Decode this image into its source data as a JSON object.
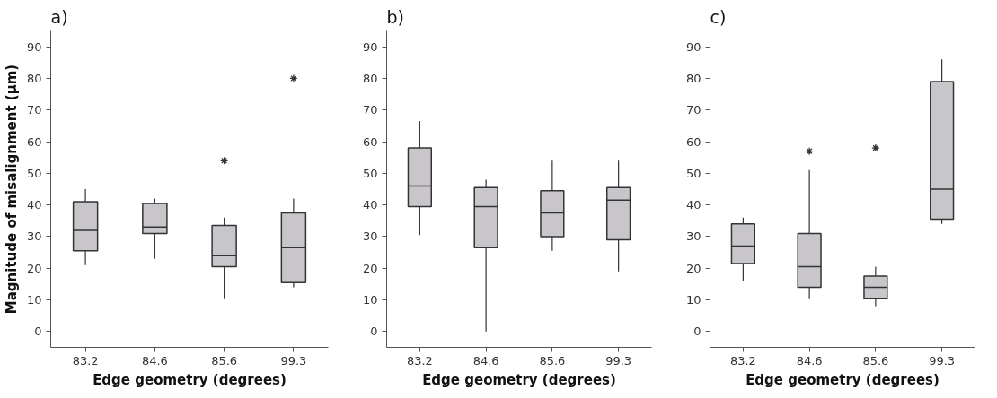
{
  "chart_data": [
    {
      "type": "box",
      "title": "a)",
      "xlabel": "Edge geometry (degrees)",
      "ylabel": "Magnitude of misalignment (µm)",
      "categories": [
        "83.2",
        "84.6",
        "85.6",
        "99.3"
      ],
      "ylim": [
        -5,
        95
      ],
      "yticks": [
        0,
        10,
        20,
        30,
        40,
        50,
        60,
        70,
        80,
        90
      ],
      "grid": false,
      "color": "#c8c6ca",
      "boxes": [
        {
          "low": 21,
          "q1": 25.5,
          "median": 32,
          "q3": 41,
          "high": 45
        },
        {
          "low": 23,
          "q1": 31,
          "median": 33,
          "q3": 40.5,
          "high": 42
        },
        {
          "low": 10.5,
          "q1": 20.5,
          "median": 24,
          "q3": 33.5,
          "high": 36,
          "outliers": [
            54
          ]
        },
        {
          "low": 14,
          "q1": 15.5,
          "median": 26.5,
          "q3": 37.5,
          "high": 42,
          "outliers": [
            80
          ]
        }
      ]
    },
    {
      "type": "box",
      "title": "b)",
      "xlabel": "Edge geometry (degrees)",
      "categories": [
        "83.2",
        "84.6",
        "85.6",
        "99.3"
      ],
      "ylim": [
        -5,
        95
      ],
      "yticks": [
        0,
        10,
        20,
        30,
        40,
        50,
        60,
        70,
        80,
        90
      ],
      "grid": false,
      "color": "#c8c6ca",
      "boxes": [
        {
          "low": 30.5,
          "q1": 39.5,
          "median": 46,
          "q3": 58,
          "high": 66.5
        },
        {
          "low": 0,
          "q1": 26.5,
          "median": 39.5,
          "q3": 45.5,
          "high": 48
        },
        {
          "low": 25.5,
          "q1": 30,
          "median": 37.5,
          "q3": 44.5,
          "high": 54
        },
        {
          "low": 19,
          "q1": 29,
          "median": 41.5,
          "q3": 45.5,
          "high": 54
        }
      ]
    },
    {
      "type": "box",
      "title": "c)",
      "xlabel": "Edge geometry (degrees)",
      "categories": [
        "83.2",
        "84.6",
        "85.6",
        "99.3"
      ],
      "ylim": [
        -5,
        95
      ],
      "yticks": [
        0,
        10,
        20,
        30,
        40,
        50,
        60,
        70,
        80,
        90
      ],
      "grid": false,
      "color": "#c8c6ca",
      "boxes": [
        {
          "low": 16,
          "q1": 21.5,
          "median": 27,
          "q3": 34,
          "high": 36
        },
        {
          "low": 10.5,
          "q1": 14,
          "median": 20.5,
          "q3": 31,
          "high": 51,
          "outliers": [
            57
          ]
        },
        {
          "low": 8,
          "q1": 10.5,
          "median": 14,
          "q3": 17.5,
          "high": 20.5,
          "outliers": [
            58
          ]
        },
        {
          "low": 34,
          "q1": 35.5,
          "median": 45,
          "q3": 79,
          "high": 86
        }
      ]
    }
  ]
}
